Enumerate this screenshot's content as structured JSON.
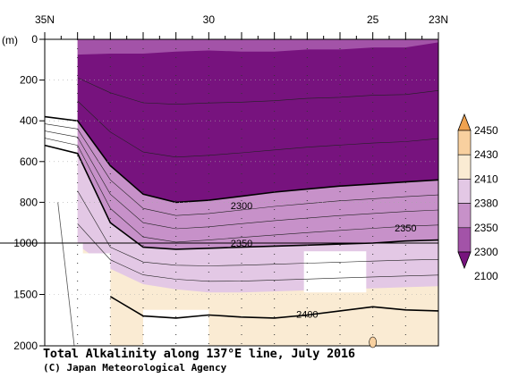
{
  "chart_data": {
    "type": "heatmap",
    "subtype": "filled-contour section",
    "title": "Total Alkalinity along 137°E line, July 2016",
    "credit": "(C) Japan Meteorological Agency",
    "y_unit": "(m)",
    "x_ticks": [
      {
        "value": 35,
        "label": "35N"
      },
      {
        "value": 30,
        "label": "30"
      },
      {
        "value": 25,
        "label": "25"
      },
      {
        "value": 23,
        "label": "23N"
      }
    ],
    "xlim": [
      35,
      23
    ],
    "y_ticks": [
      0,
      200,
      400,
      600,
      800,
      1000,
      1500,
      2000
    ],
    "ylim": [
      0,
      2000
    ],
    "y_scale": "piecewise-linear, 0-1000 m expanded, 1000-2000 m compressed",
    "stations_lat": [
      34.0,
      33.0,
      32.0,
      31.0,
      30.0,
      29.0,
      28.0,
      27.0,
      26.0,
      25.0,
      24.0
    ],
    "colorbar": {
      "levels": [
        2100,
        2300,
        2350,
        2380,
        2410,
        2430,
        2450
      ],
      "colors": [
        "#77137e",
        "#a353a8",
        "#c791c9",
        "#e3c8e5",
        "#faebd3",
        "#f8d09f",
        "#f0a24f"
      ]
    },
    "contour_labels": [
      {
        "value": "2300",
        "lat": 29.0,
        "depth": 820
      },
      {
        "value": "2350",
        "lat": 29.0,
        "depth": 1010
      },
      {
        "value": "2350",
        "lat": 24.0,
        "depth": 930
      },
      {
        "value": "2400",
        "lat": 27.0,
        "depth": 1700
      }
    ],
    "iso_2300_depth": [
      [
        35.0,
        380
      ],
      [
        34.0,
        400
      ],
      [
        33.0,
        620
      ],
      [
        32.0,
        760
      ],
      [
        31.0,
        800
      ],
      [
        30.0,
        790
      ],
      [
        29.0,
        770
      ],
      [
        28.0,
        750
      ],
      [
        27.0,
        735
      ],
      [
        26.0,
        720
      ],
      [
        25.0,
        710
      ],
      [
        24.0,
        700
      ],
      [
        23.0,
        690
      ]
    ],
    "iso_2350_depth": [
      [
        35.0,
        520
      ],
      [
        34.0,
        560
      ],
      [
        33.0,
        900
      ],
      [
        32.0,
        1040
      ],
      [
        31.0,
        1060
      ],
      [
        30.0,
        1050
      ],
      [
        29.0,
        1040
      ],
      [
        28.0,
        1030
      ],
      [
        27.0,
        1020
      ],
      [
        26.0,
        1010
      ],
      [
        25.0,
        1000
      ],
      [
        24.0,
        990
      ],
      [
        23.0,
        985
      ]
    ],
    "iso_2380_depth": [
      [
        34.0,
        1020
      ],
      [
        33.0,
        1250
      ],
      [
        32.0,
        1400
      ],
      [
        31.0,
        1450
      ],
      [
        30.0,
        1480
      ],
      [
        29.0,
        1480
      ],
      [
        28.0,
        1470
      ],
      [
        27.0,
        1460
      ],
      [
        26.0,
        1450
      ],
      [
        25.0,
        1440
      ],
      [
        24.0,
        1430
      ],
      [
        23.0,
        1420
      ]
    ],
    "iso_2400_depth": [
      [
        33.0,
        1520
      ],
      [
        32.0,
        1710
      ],
      [
        31.0,
        1730
      ],
      [
        30.0,
        1700
      ],
      [
        29.0,
        1720
      ],
      [
        28.0,
        1730
      ],
      [
        27.0,
        1700
      ],
      [
        26.0,
        1660
      ],
      [
        25.0,
        1620
      ],
      [
        24.0,
        1650
      ],
      [
        23.0,
        1660
      ]
    ],
    "iso_2100_depth": [
      [
        34.0,
        75
      ],
      [
        33.0,
        70
      ],
      [
        32.0,
        70
      ],
      [
        31.0,
        60
      ],
      [
        30.0,
        55
      ],
      [
        29.0,
        60
      ],
      [
        28.0,
        60
      ],
      [
        27.0,
        50
      ],
      [
        26.0,
        50
      ],
      [
        25.0,
        40
      ],
      [
        24.0,
        40
      ],
      [
        23.0,
        15
      ]
    ]
  }
}
